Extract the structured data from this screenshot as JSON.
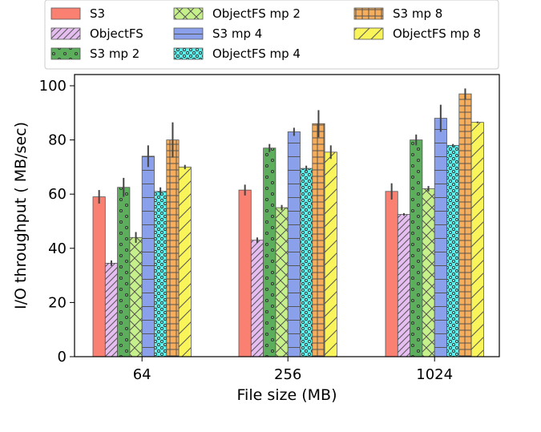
{
  "chart_data": {
    "type": "bar",
    "xlabel": "File size (MB)",
    "ylabel": "I/O throughput ( MB/sec)",
    "ylim": [
      0,
      100
    ],
    "yticks": [
      0,
      20,
      40,
      60,
      80,
      100
    ],
    "categories": [
      "64",
      "256",
      "1024"
    ],
    "legend_position": "top-center",
    "grid": false,
    "series": [
      {
        "name": "S3",
        "values": [
          59,
          61.5,
          61
        ],
        "errors": [
          2.5,
          2,
          3
        ],
        "color": "#fa8072",
        "pattern": "none"
      },
      {
        "name": "ObjectFS",
        "values": [
          34.5,
          43,
          52.5
        ],
        "errors": [
          1,
          1,
          0.5
        ],
        "color": "#e6bdf0",
        "pattern": "diag"
      },
      {
        "name": "S3 mp 2",
        "values": [
          62.5,
          77,
          80
        ],
        "errors": [
          3.5,
          1.5,
          2
        ],
        "color": "#5cad5c",
        "pattern": "dots-sparse"
      },
      {
        "name": "ObjectFS mp 2",
        "values": [
          44,
          55,
          62
        ],
        "errors": [
          2,
          1,
          1
        ],
        "color": "#c6f08a",
        "pattern": "cross"
      },
      {
        "name": "S3 mp 4",
        "values": [
          74,
          83,
          88
        ],
        "errors": [
          4,
          1.5,
          5
        ],
        "color": "#8aa0ea",
        "pattern": "hlines"
      },
      {
        "name": "ObjectFS mp 4",
        "values": [
          61,
          69.5,
          78
        ],
        "errors": [
          1.5,
          1,
          0.5
        ],
        "color": "#5cf0ec",
        "pattern": "dots"
      },
      {
        "name": "S3 mp 8",
        "values": [
          80,
          86,
          97
        ],
        "errors": [
          6.5,
          5,
          2
        ],
        "color": "#f6ad5c",
        "pattern": "grid"
      },
      {
        "name": "ObjectFS mp 8",
        "values": [
          70,
          75.5,
          86.5
        ],
        "errors": [
          0.8,
          2.5,
          0.3
        ],
        "color": "#f8f45a",
        "pattern": "diag-sparse"
      }
    ]
  }
}
